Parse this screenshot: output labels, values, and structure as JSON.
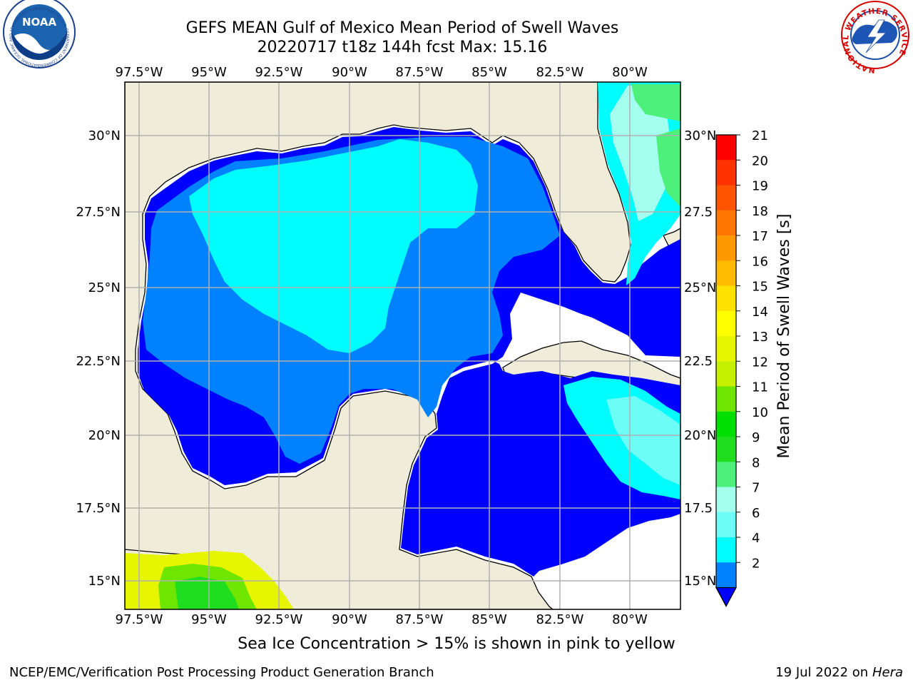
{
  "title": {
    "line1": "GEFS MEAN Gulf of Mexico Mean Period of Swell Waves",
    "line2": "20220717 t18z 144h fcst   Max: 15.16"
  },
  "map": {
    "lon_labels": [
      "97.5°W",
      "95°W",
      "92.5°W",
      "90°W",
      "87.5°W",
      "85°W",
      "82.5°W",
      "80°W"
    ],
    "lat_labels_left": [
      "30°N",
      "27.5°N",
      "25°N",
      "22.5°N",
      "20°N",
      "17.5°N",
      "15°N"
    ],
    "lat_labels_right": [
      "30°N",
      "27.5",
      "25°N",
      "22.5",
      "20°N",
      "17.5",
      "15°N"
    ],
    "land_color": "#efedda",
    "ocean_color": "#ffffff",
    "grid_color": "#b0b0b0"
  },
  "colorbar": {
    "label": "Mean Period of Swell Waves [s]",
    "ticks": [
      "21",
      "20",
      "19",
      "18",
      "17",
      "16",
      "15",
      "14",
      "13",
      "12",
      "11",
      "10",
      "9",
      "8",
      "7",
      "6",
      "4",
      "2"
    ],
    "colors": [
      "#ff0000",
      "#ff3300",
      "#ff5500",
      "#ff7700",
      "#ff9900",
      "#ffbb00",
      "#ffe100",
      "#ffff00",
      "#e8f500",
      "#c7f000",
      "#6fe600",
      "#00e000",
      "#1fde1f",
      "#4cf07a",
      "#a5ffee",
      "#6cfdf6",
      "#00fdfd",
      "#0082ff"
    ],
    "extend_color": "#0000ff"
  },
  "logos": {
    "noaa_text": "NOAA",
    "noaa_ring": "NATIONAL OCEANIC AND ATMOSPHERIC ADMINISTRATION · U.S. DEPARTMENT OF COMMERCE",
    "nws_ring": "NATIONAL WEATHER SERVICE"
  },
  "note": "Sea Ice Concentration > 15% is shown in pink to yellow",
  "footer": {
    "left": "NCEP/EMC/Verification Post Processing Product Generation Branch",
    "date": "19 Jul 2022 on ",
    "host": "Hera"
  }
}
